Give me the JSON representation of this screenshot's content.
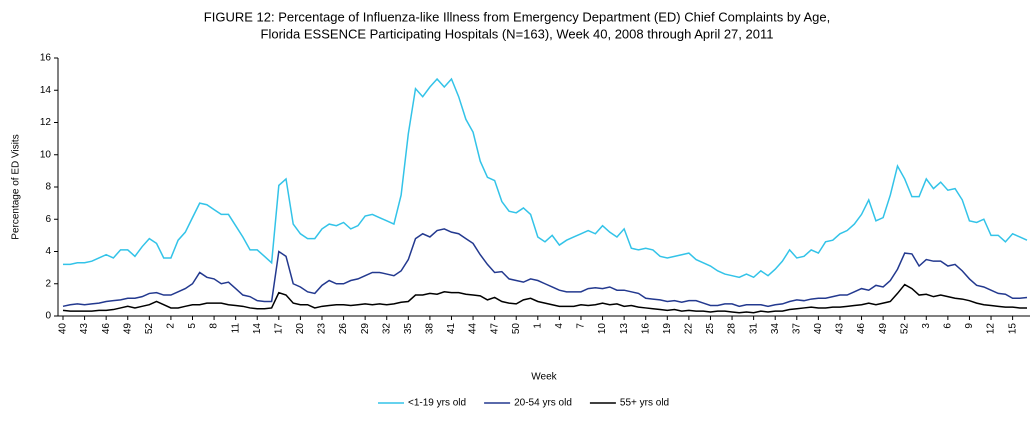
{
  "chart_data": {
    "type": "line",
    "title": "FIGURE 12: Percentage of Influenza-like Illness from Emergency Department (ED) Chief Complaints by Age,",
    "subtitle": "Florida ESSENCE Participating Hospitals (N=163), Week 40, 2008 through April 27, 2011",
    "x_label": "Week",
    "y_label": "Percentage of ED Visits",
    "ylim": [
      0,
      16
    ],
    "yticks": [
      0,
      2,
      4,
      6,
      8,
      10,
      12,
      14,
      16
    ],
    "grid": false,
    "legend": "bottom",
    "categories": [
      "40",
      null,
      null,
      "43",
      null,
      null,
      "46",
      null,
      null,
      "49",
      null,
      null,
      "52",
      null,
      null,
      "2",
      null,
      null,
      "5",
      null,
      null,
      "8",
      null,
      null,
      "11",
      null,
      null,
      "14",
      null,
      null,
      "17",
      null,
      null,
      "20",
      null,
      null,
      "23",
      null,
      null,
      "26",
      null,
      null,
      "29",
      null,
      null,
      "32",
      null,
      null,
      "35",
      null,
      null,
      "38",
      null,
      null,
      "41",
      null,
      null,
      "44",
      null,
      null,
      "47",
      null,
      null,
      "50",
      null,
      null,
      "1",
      null,
      null,
      "4",
      null,
      null,
      "7",
      null,
      null,
      "10",
      null,
      null,
      "13",
      null,
      null,
      "16",
      null,
      null,
      "19",
      null,
      null,
      "22",
      null,
      null,
      "25",
      null,
      null,
      "28",
      null,
      null,
      "31",
      null,
      null,
      "34",
      null,
      null,
      "37",
      null,
      null,
      "40",
      null,
      null,
      "43",
      null,
      null,
      "46",
      null,
      null,
      "49",
      null,
      null,
      "52",
      null,
      null,
      "3",
      null,
      null,
      "6",
      null,
      null,
      "9",
      null,
      null,
      "12",
      null,
      null,
      "15",
      null,
      null
    ],
    "series": [
      {
        "name": "<1-19 yrs old",
        "color": "#33c3e8",
        "values": [
          3.2,
          3.2,
          3.3,
          3.3,
          3.4,
          3.6,
          3.8,
          3.6,
          4.1,
          4.1,
          3.7,
          4.3,
          4.8,
          4.5,
          3.6,
          3.6,
          4.7,
          5.2,
          6.1,
          7.0,
          6.9,
          6.6,
          6.3,
          6.3,
          5.6,
          4.9,
          4.1,
          4.1,
          3.7,
          3.3,
          8.1,
          8.5,
          5.7,
          5.1,
          4.8,
          4.8,
          5.4,
          5.7,
          5.6,
          5.8,
          5.4,
          5.6,
          6.2,
          6.3,
          6.1,
          5.9,
          5.7,
          7.5,
          11.3,
          14.1,
          13.6,
          14.2,
          14.7,
          14.2,
          14.7,
          13.6,
          12.2,
          11.4,
          9.6,
          8.6,
          8.4,
          7.1,
          6.5,
          6.4,
          6.7,
          6.3,
          4.9,
          4.6,
          5.0,
          4.4,
          4.7,
          4.9,
          5.1,
          5.3,
          5.1,
          5.6,
          5.2,
          4.9,
          5.4,
          4.2,
          4.1,
          4.2,
          4.1,
          3.7,
          3.6,
          3.7,
          3.8,
          3.9,
          3.5,
          3.3,
          3.1,
          2.8,
          2.6,
          2.5,
          2.4,
          2.6,
          2.4,
          2.8,
          2.5,
          2.9,
          3.4,
          4.1,
          3.6,
          3.7,
          4.1,
          3.9,
          4.6,
          4.7,
          5.1,
          5.3,
          5.7,
          6.3,
          7.2,
          5.9,
          6.1,
          7.5,
          9.3,
          8.5,
          7.4,
          7.4,
          8.5,
          7.9,
          8.3,
          7.8,
          7.9,
          7.2,
          5.9,
          5.8,
          6.0,
          5.0,
          5.0,
          4.6,
          5.1,
          4.9,
          4.7
        ]
      },
      {
        "name": "20-54 yrs old",
        "color": "#23398f",
        "values": [
          0.6,
          0.7,
          0.75,
          0.7,
          0.75,
          0.8,
          0.9,
          0.95,
          1.0,
          1.1,
          1.1,
          1.2,
          1.4,
          1.45,
          1.3,
          1.3,
          1.5,
          1.7,
          2.0,
          2.7,
          2.4,
          2.3,
          2.0,
          2.1,
          1.7,
          1.3,
          1.2,
          0.95,
          0.9,
          0.9,
          4.0,
          3.7,
          2.0,
          1.8,
          1.5,
          1.4,
          1.9,
          2.2,
          2.0,
          2.0,
          2.2,
          2.3,
          2.5,
          2.7,
          2.7,
          2.6,
          2.5,
          2.8,
          3.5,
          4.8,
          5.1,
          4.9,
          5.3,
          5.4,
          5.2,
          5.1,
          4.8,
          4.5,
          3.8,
          3.2,
          2.7,
          2.75,
          2.3,
          2.2,
          2.1,
          2.3,
          2.2,
          2.0,
          1.8,
          1.6,
          1.5,
          1.5,
          1.5,
          1.7,
          1.75,
          1.7,
          1.8,
          1.6,
          1.6,
          1.5,
          1.4,
          1.1,
          1.05,
          1.0,
          0.9,
          0.95,
          0.85,
          0.95,
          0.95,
          0.8,
          0.65,
          0.65,
          0.75,
          0.75,
          0.6,
          0.7,
          0.7,
          0.7,
          0.6,
          0.7,
          0.75,
          0.9,
          1.0,
          0.95,
          1.05,
          1.1,
          1.1,
          1.2,
          1.3,
          1.3,
          1.5,
          1.7,
          1.6,
          1.9,
          1.8,
          2.2,
          2.9,
          3.9,
          3.85,
          3.1,
          3.5,
          3.4,
          3.4,
          3.1,
          3.2,
          2.8,
          2.3,
          1.9,
          1.8,
          1.6,
          1.4,
          1.35,
          1.1,
          1.1,
          1.15
        ]
      },
      {
        "name": "55+ yrs old",
        "color": "#000000",
        "values": [
          0.35,
          0.3,
          0.3,
          0.3,
          0.3,
          0.35,
          0.35,
          0.4,
          0.5,
          0.6,
          0.5,
          0.6,
          0.7,
          0.9,
          0.7,
          0.5,
          0.5,
          0.6,
          0.7,
          0.7,
          0.8,
          0.8,
          0.8,
          0.7,
          0.65,
          0.6,
          0.5,
          0.45,
          0.45,
          0.5,
          1.45,
          1.3,
          0.8,
          0.7,
          0.7,
          0.5,
          0.6,
          0.65,
          0.7,
          0.7,
          0.65,
          0.7,
          0.75,
          0.7,
          0.75,
          0.7,
          0.75,
          0.85,
          0.9,
          1.3,
          1.3,
          1.4,
          1.35,
          1.5,
          1.45,
          1.45,
          1.35,
          1.3,
          1.25,
          1.0,
          1.15,
          0.9,
          0.8,
          0.75,
          1.0,
          1.1,
          0.9,
          0.8,
          0.7,
          0.6,
          0.6,
          0.6,
          0.7,
          0.65,
          0.7,
          0.8,
          0.7,
          0.75,
          0.6,
          0.65,
          0.55,
          0.5,
          0.45,
          0.4,
          0.35,
          0.4,
          0.3,
          0.35,
          0.3,
          0.3,
          0.25,
          0.3,
          0.3,
          0.25,
          0.2,
          0.25,
          0.2,
          0.3,
          0.25,
          0.3,
          0.3,
          0.4,
          0.45,
          0.5,
          0.55,
          0.5,
          0.5,
          0.55,
          0.55,
          0.6,
          0.65,
          0.7,
          0.8,
          0.7,
          0.8,
          0.9,
          1.4,
          1.95,
          1.7,
          1.3,
          1.35,
          1.2,
          1.3,
          1.2,
          1.1,
          1.05,
          0.95,
          0.8,
          0.7,
          0.65,
          0.6,
          0.55,
          0.55,
          0.5,
          0.5
        ]
      }
    ]
  }
}
